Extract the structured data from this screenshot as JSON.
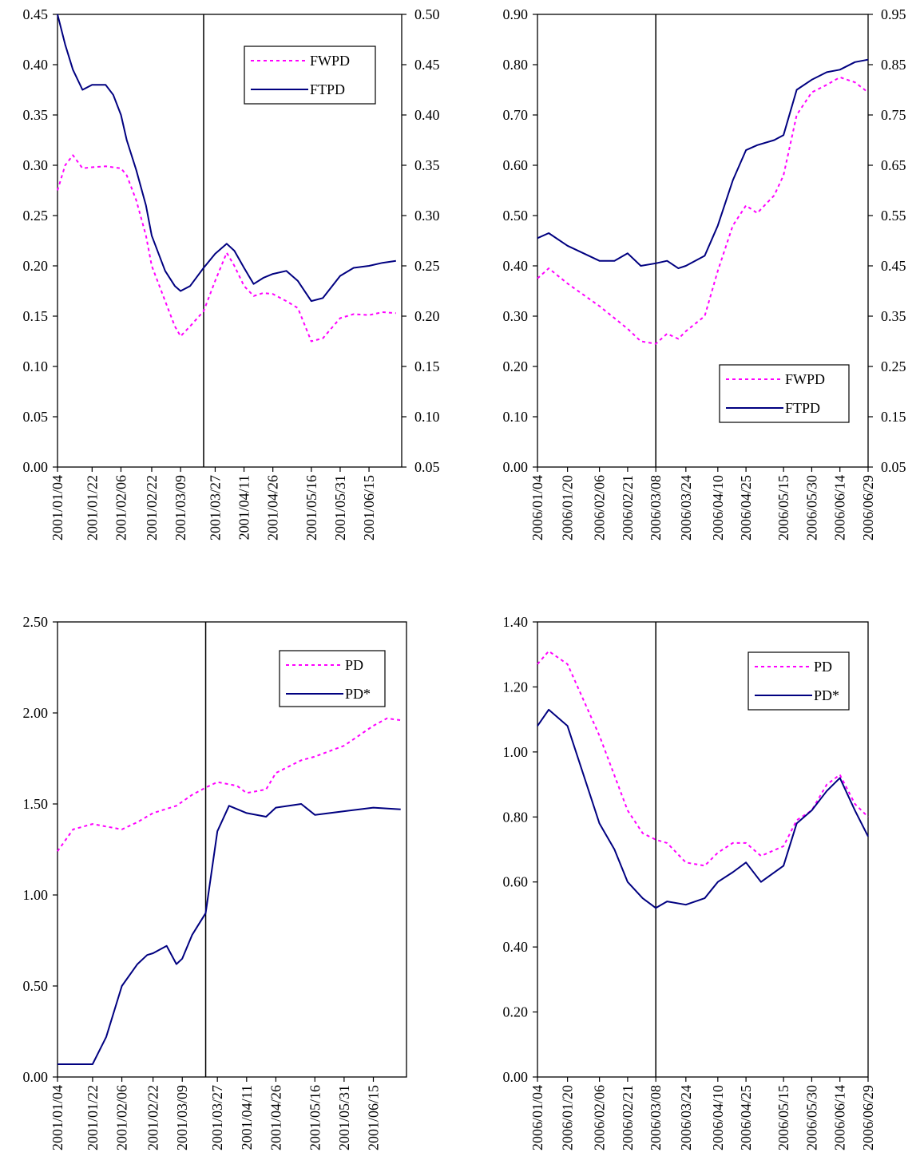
{
  "colors": {
    "dotted": "#ff00ff",
    "solid": "#000080",
    "axis": "#000000",
    "background": "#ffffff"
  },
  "chart_data": [
    {
      "id": "tl",
      "type": "line",
      "x_labels": [
        "2001/01/04",
        "2001/01/22",
        "2001/02/06",
        "2001/02/22",
        "2001/03/09",
        "2001/03/27",
        "2001/04/11",
        "2001/04/26",
        "2001/05/16",
        "2001/05/31",
        "2001/06/15"
      ],
      "event_date": "2001/03/21",
      "y_left": {
        "min": 0.0,
        "max": 0.45,
        "ticks": [
          "0.00",
          "0.05",
          "0.10",
          "0.15",
          "0.20",
          "0.25",
          "0.30",
          "0.35",
          "0.40",
          "0.45"
        ]
      },
      "y_right": {
        "min": 0.05,
        "max": 0.5,
        "ticks": [
          "0.05",
          "0.10",
          "0.15",
          "0.20",
          "0.25",
          "0.30",
          "0.35",
          "0.40",
          "0.45",
          "0.50"
        ]
      },
      "legend_position": "top-right",
      "series": [
        {
          "name": "FWPD",
          "style": "dotted",
          "axis": "left",
          "points": [
            [
              "2001/01/04",
              0.275
            ],
            [
              "2001/01/08",
              0.3
            ],
            [
              "2001/01/12",
              0.31
            ],
            [
              "2001/01/17",
              0.297
            ],
            [
              "2001/01/22",
              0.298
            ],
            [
              "2001/01/29",
              0.299
            ],
            [
              "2001/02/06",
              0.297
            ],
            [
              "2001/02/09",
              0.29
            ],
            [
              "2001/02/14",
              0.265
            ],
            [
              "2001/02/19",
              0.23
            ],
            [
              "2001/02/22",
              0.2
            ],
            [
              "2001/03/01",
              0.165
            ],
            [
              "2001/03/06",
              0.14
            ],
            [
              "2001/03/09",
              0.13
            ],
            [
              "2001/03/14",
              0.14
            ],
            [
              "2001/03/21",
              0.155
            ],
            [
              "2001/03/27",
              0.185
            ],
            [
              "2001/04/02",
              0.213
            ],
            [
              "2001/04/06",
              0.2
            ],
            [
              "2001/04/11",
              0.18
            ],
            [
              "2001/04/16",
              0.17
            ],
            [
              "2001/04/21",
              0.173
            ],
            [
              "2001/04/26",
              0.172
            ],
            [
              "2001/05/03",
              0.165
            ],
            [
              "2001/05/09",
              0.158
            ],
            [
              "2001/05/16",
              0.125
            ],
            [
              "2001/05/22",
              0.128
            ],
            [
              "2001/05/31",
              0.148
            ],
            [
              "2001/06/07",
              0.152
            ],
            [
              "2001/06/15",
              0.151
            ],
            [
              "2001/06/22",
              0.154
            ],
            [
              "2001/06/29",
              0.153
            ]
          ]
        },
        {
          "name": "FTPD",
          "style": "solid",
          "axis": "right",
          "points": [
            [
              "2001/01/04",
              0.5
            ],
            [
              "2001/01/08",
              0.47
            ],
            [
              "2001/01/12",
              0.445
            ],
            [
              "2001/01/17",
              0.425
            ],
            [
              "2001/01/22",
              0.43
            ],
            [
              "2001/01/29",
              0.43
            ],
            [
              "2001/02/02",
              0.42
            ],
            [
              "2001/02/06",
              0.4
            ],
            [
              "2001/02/09",
              0.375
            ],
            [
              "2001/02/14",
              0.345
            ],
            [
              "2001/02/19",
              0.31
            ],
            [
              "2001/02/22",
              0.28
            ],
            [
              "2001/03/01",
              0.245
            ],
            [
              "2001/03/06",
              0.23
            ],
            [
              "2001/03/09",
              0.225
            ],
            [
              "2001/03/14",
              0.23
            ],
            [
              "2001/03/21",
              0.248
            ],
            [
              "2001/03/27",
              0.262
            ],
            [
              "2001/04/02",
              0.272
            ],
            [
              "2001/04/06",
              0.265
            ],
            [
              "2001/04/11",
              0.248
            ],
            [
              "2001/04/16",
              0.232
            ],
            [
              "2001/04/21",
              0.238
            ],
            [
              "2001/04/26",
              0.242
            ],
            [
              "2001/05/03",
              0.245
            ],
            [
              "2001/05/09",
              0.235
            ],
            [
              "2001/05/16",
              0.215
            ],
            [
              "2001/05/22",
              0.218
            ],
            [
              "2001/05/31",
              0.24
            ],
            [
              "2001/06/07",
              0.248
            ],
            [
              "2001/06/15",
              0.25
            ],
            [
              "2001/06/22",
              0.253
            ],
            [
              "2001/06/29",
              0.255
            ]
          ]
        }
      ]
    },
    {
      "id": "tr",
      "type": "line",
      "x_labels": [
        "2006/01/04",
        "2006/01/20",
        "2006/02/06",
        "2006/02/21",
        "2006/03/08",
        "2006/03/24",
        "2006/04/10",
        "2006/04/25",
        "2006/05/15",
        "2006/05/30",
        "2006/06/14",
        "2006/06/29"
      ],
      "event_date": "2006/03/08",
      "y_left": {
        "min": 0.0,
        "max": 0.9,
        "ticks": [
          "0.00",
          "0.10",
          "0.20",
          "0.30",
          "0.40",
          "0.50",
          "0.60",
          "0.70",
          "0.80",
          "0.90"
        ]
      },
      "y_right": {
        "min": 0.05,
        "max": 0.95,
        "ticks": [
          "0.05",
          "0.15",
          "0.25",
          "0.35",
          "0.45",
          "0.55",
          "0.65",
          "0.75",
          "0.85",
          "0.95"
        ]
      },
      "legend_position": "bottom-right",
      "series": [
        {
          "name": "FWPD",
          "style": "dotted",
          "axis": "left",
          "points": [
            [
              "2006/01/04",
              0.375
            ],
            [
              "2006/01/10",
              0.395
            ],
            [
              "2006/01/20",
              0.365
            ],
            [
              "2006/02/06",
              0.32
            ],
            [
              "2006/02/21",
              0.275
            ],
            [
              "2006/02/28",
              0.25
            ],
            [
              "2006/03/08",
              0.245
            ],
            [
              "2006/03/14",
              0.265
            ],
            [
              "2006/03/20",
              0.255
            ],
            [
              "2006/03/24",
              0.27
            ],
            [
              "2006/04/03",
              0.3
            ],
            [
              "2006/04/10",
              0.39
            ],
            [
              "2006/04/18",
              0.48
            ],
            [
              "2006/04/25",
              0.52
            ],
            [
              "2006/05/01",
              0.505
            ],
            [
              "2006/05/10",
              0.54
            ],
            [
              "2006/05/15",
              0.58
            ],
            [
              "2006/05/22",
              0.7
            ],
            [
              "2006/05/30",
              0.745
            ],
            [
              "2006/06/07",
              0.76
            ],
            [
              "2006/06/14",
              0.775
            ],
            [
              "2006/06/22",
              0.765
            ],
            [
              "2006/06/29",
              0.745
            ]
          ]
        },
        {
          "name": "FTPD",
          "style": "solid",
          "axis": "right",
          "points": [
            [
              "2006/01/04",
              0.505
            ],
            [
              "2006/01/10",
              0.515
            ],
            [
              "2006/01/20",
              0.49
            ],
            [
              "2006/02/06",
              0.46
            ],
            [
              "2006/02/14",
              0.46
            ],
            [
              "2006/02/21",
              0.475
            ],
            [
              "2006/02/28",
              0.45
            ],
            [
              "2006/03/08",
              0.455
            ],
            [
              "2006/03/14",
              0.46
            ],
            [
              "2006/03/20",
              0.445
            ],
            [
              "2006/03/24",
              0.45
            ],
            [
              "2006/04/03",
              0.47
            ],
            [
              "2006/04/10",
              0.53
            ],
            [
              "2006/04/18",
              0.62
            ],
            [
              "2006/04/25",
              0.68
            ],
            [
              "2006/05/01",
              0.69
            ],
            [
              "2006/05/10",
              0.7
            ],
            [
              "2006/05/15",
              0.71
            ],
            [
              "2006/05/22",
              0.8
            ],
            [
              "2006/05/30",
              0.82
            ],
            [
              "2006/06/07",
              0.835
            ],
            [
              "2006/06/14",
              0.84
            ],
            [
              "2006/06/22",
              0.855
            ],
            [
              "2006/06/29",
              0.86
            ]
          ]
        }
      ]
    },
    {
      "id": "bl",
      "type": "line",
      "x_labels": [
        "2001/01/04",
        "2001/01/22",
        "2001/02/06",
        "2001/02/22",
        "2001/03/09",
        "2001/03/27",
        "2001/04/11",
        "2001/04/26",
        "2001/05/16",
        "2001/05/31",
        "2001/06/15"
      ],
      "event_date": "2001/03/21",
      "y_left": {
        "min": 0.0,
        "max": 2.5,
        "ticks": [
          "0.00",
          "0.50",
          "1.00",
          "1.50",
          "2.00",
          "2.50"
        ]
      },
      "legend_position": "top-right",
      "series": [
        {
          "name": "PD",
          "style": "dotted",
          "axis": "left",
          "points": [
            [
              "2001/01/04",
              1.24
            ],
            [
              "2001/01/12",
              1.36
            ],
            [
              "2001/01/22",
              1.39
            ],
            [
              "2001/02/06",
              1.36
            ],
            [
              "2001/02/14",
              1.4
            ],
            [
              "2001/02/22",
              1.45
            ],
            [
              "2001/03/06",
              1.49
            ],
            [
              "2001/03/14",
              1.55
            ],
            [
              "2001/03/21",
              1.59
            ],
            [
              "2001/03/27",
              1.62
            ],
            [
              "2001/04/06",
              1.6
            ],
            [
              "2001/04/11",
              1.56
            ],
            [
              "2001/04/21",
              1.58
            ],
            [
              "2001/04/26",
              1.67
            ],
            [
              "2001/05/09",
              1.74
            ],
            [
              "2001/05/16",
              1.76
            ],
            [
              "2001/05/31",
              1.82
            ],
            [
              "2001/06/15",
              1.93
            ],
            [
              "2001/06/22",
              1.97
            ],
            [
              "2001/06/29",
              1.96
            ]
          ]
        },
        {
          "name": "PD*",
          "style": "solid",
          "axis": "left",
          "points": [
            [
              "2001/01/04",
              0.07
            ],
            [
              "2001/01/12",
              0.07
            ],
            [
              "2001/01/22",
              0.07
            ],
            [
              "2001/01/29",
              0.22
            ],
            [
              "2001/02/06",
              0.5
            ],
            [
              "2001/02/14",
              0.62
            ],
            [
              "2001/02/19",
              0.67
            ],
            [
              "2001/02/22",
              0.68
            ],
            [
              "2001/03/01",
              0.72
            ],
            [
              "2001/03/06",
              0.62
            ],
            [
              "2001/03/09",
              0.65
            ],
            [
              "2001/03/14",
              0.78
            ],
            [
              "2001/03/21",
              0.9
            ],
            [
              "2001/03/27",
              1.35
            ],
            [
              "2001/04/02",
              1.49
            ],
            [
              "2001/04/11",
              1.45
            ],
            [
              "2001/04/21",
              1.43
            ],
            [
              "2001/04/26",
              1.48
            ],
            [
              "2001/05/09",
              1.5
            ],
            [
              "2001/05/16",
              1.44
            ],
            [
              "2001/05/31",
              1.46
            ],
            [
              "2001/06/15",
              1.48
            ],
            [
              "2001/06/29",
              1.47
            ]
          ]
        }
      ]
    },
    {
      "id": "br",
      "type": "line",
      "x_labels": [
        "2006/01/04",
        "2006/01/20",
        "2006/02/06",
        "2006/02/21",
        "2006/03/08",
        "2006/03/24",
        "2006/04/10",
        "2006/04/25",
        "2006/05/15",
        "2006/05/30",
        "2006/06/14",
        "2006/06/29"
      ],
      "event_date": "2006/03/08",
      "y_left": {
        "min": 0.0,
        "max": 1.4,
        "ticks": [
          "0.00",
          "0.20",
          "0.40",
          "0.60",
          "0.80",
          "1.00",
          "1.20",
          "1.40"
        ]
      },
      "legend_position": "top-right",
      "series": [
        {
          "name": "PD",
          "style": "dotted",
          "axis": "left",
          "points": [
            [
              "2006/01/04",
              1.27
            ],
            [
              "2006/01/10",
              1.31
            ],
            [
              "2006/01/20",
              1.27
            ],
            [
              "2006/02/06",
              1.05
            ],
            [
              "2006/02/21",
              0.82
            ],
            [
              "2006/03/01",
              0.75
            ],
            [
              "2006/03/08",
              0.73
            ],
            [
              "2006/03/14",
              0.72
            ],
            [
              "2006/03/24",
              0.66
            ],
            [
              "2006/04/03",
              0.65
            ],
            [
              "2006/04/10",
              0.69
            ],
            [
              "2006/04/18",
              0.72
            ],
            [
              "2006/04/25",
              0.72
            ],
            [
              "2006/05/03",
              0.68
            ],
            [
              "2006/05/15",
              0.71
            ],
            [
              "2006/05/22",
              0.79
            ],
            [
              "2006/05/30",
              0.82
            ],
            [
              "2006/06/07",
              0.9
            ],
            [
              "2006/06/14",
              0.93
            ],
            [
              "2006/06/22",
              0.84
            ],
            [
              "2006/06/29",
              0.8
            ]
          ]
        },
        {
          "name": "PD*",
          "style": "solid",
          "axis": "left",
          "points": [
            [
              "2006/01/04",
              1.08
            ],
            [
              "2006/01/10",
              1.13
            ],
            [
              "2006/01/20",
              1.08
            ],
            [
              "2006/02/06",
              0.78
            ],
            [
              "2006/02/14",
              0.7
            ],
            [
              "2006/02/21",
              0.6
            ],
            [
              "2006/03/01",
              0.55
            ],
            [
              "2006/03/08",
              0.52
            ],
            [
              "2006/03/14",
              0.54
            ],
            [
              "2006/03/24",
              0.53
            ],
            [
              "2006/04/03",
              0.55
            ],
            [
              "2006/04/10",
              0.6
            ],
            [
              "2006/04/18",
              0.63
            ],
            [
              "2006/04/25",
              0.66
            ],
            [
              "2006/05/03",
              0.6
            ],
            [
              "2006/05/15",
              0.65
            ],
            [
              "2006/05/22",
              0.78
            ],
            [
              "2006/05/30",
              0.82
            ],
            [
              "2006/06/07",
              0.88
            ],
            [
              "2006/06/14",
              0.92
            ],
            [
              "2006/06/22",
              0.82
            ],
            [
              "2006/06/29",
              0.74
            ]
          ]
        }
      ]
    }
  ]
}
